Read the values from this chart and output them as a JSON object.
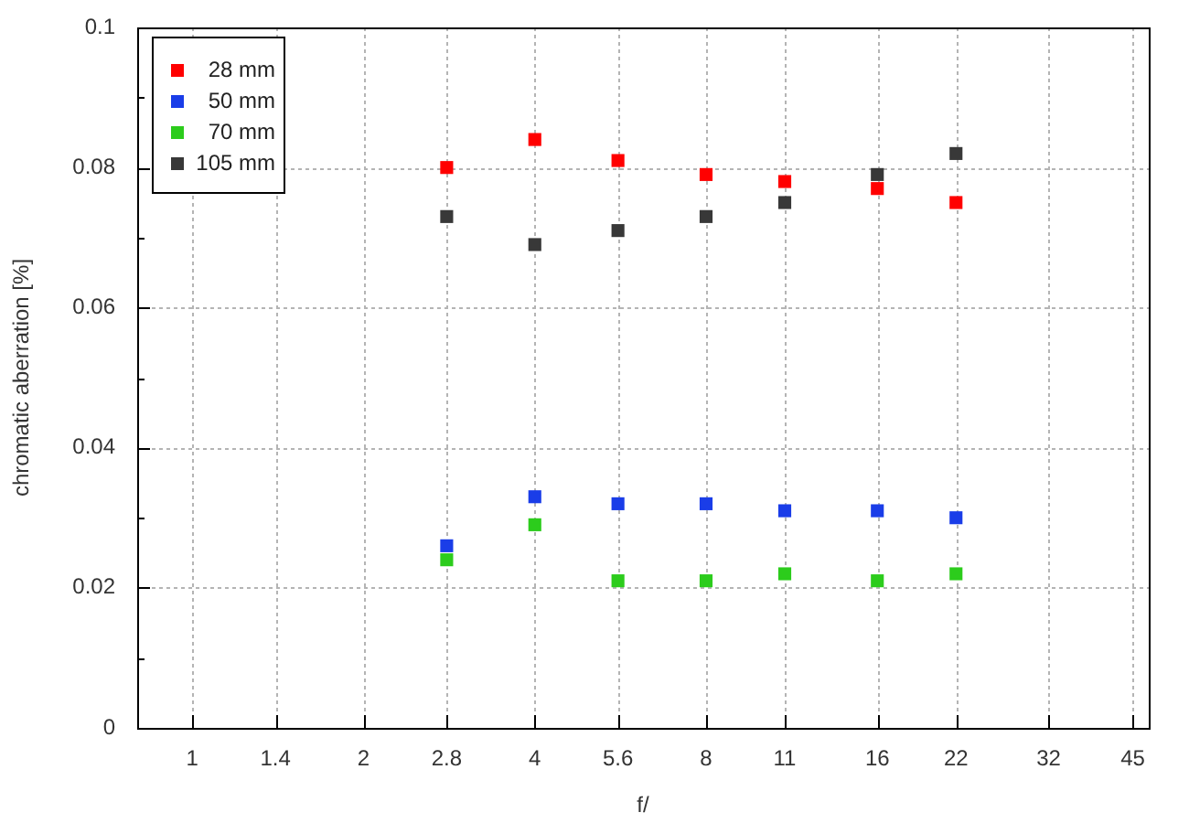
{
  "chart_data": {
    "type": "scatter",
    "xlabel": "f/",
    "ylabel": "chromatic aberration [%]",
    "x": [
      2.8,
      4,
      5.6,
      8,
      11,
      16,
      22
    ],
    "series": [
      {
        "name": "28 mm",
        "color": "#ff0000",
        "values": [
          0.08,
          0.084,
          0.081,
          0.079,
          0.078,
          0.077,
          0.075
        ]
      },
      {
        "name": "50 mm",
        "color": "#1a3de8",
        "values": [
          0.026,
          0.033,
          0.032,
          0.032,
          0.031,
          0.031,
          0.03
        ]
      },
      {
        "name": "70 mm",
        "color": "#2ccc1c",
        "values": [
          0.024,
          0.029,
          0.021,
          0.021,
          0.022,
          0.021,
          0.022
        ]
      },
      {
        "name": "105 mm",
        "color": "#383838",
        "values": [
          0.073,
          0.069,
          0.071,
          0.073,
          0.075,
          0.079,
          0.082
        ]
      }
    ],
    "log": "x",
    "xlim": [
      0.8,
      48
    ],
    "xticks": [
      1,
      1.4,
      2,
      2.8,
      4,
      5.6,
      8,
      11,
      16,
      22,
      32,
      45
    ],
    "ylim": [
      0,
      0.1
    ],
    "yticks": [
      0,
      {
        "value": 0.01,
        "label": null
      },
      0.02,
      {
        "value": 0.03,
        "label": null
      },
      0.04,
      {
        "value": 0.05,
        "label": null
      },
      0.06,
      {
        "value": 0.07,
        "label": null
      },
      0.08,
      {
        "value": 0.09,
        "label": null
      },
      0.1
    ],
    "grid": true,
    "legend": "top left",
    "marker": "square"
  }
}
